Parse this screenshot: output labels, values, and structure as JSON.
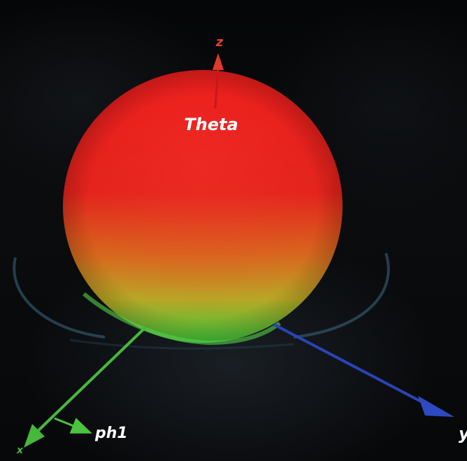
{
  "labels": {
    "z_axis": "z",
    "x_axis": "x",
    "y_axis": "y",
    "theta": "Theta",
    "phi": "ph1"
  },
  "colors": {
    "background": "#050607",
    "sphere_top": "#e3161a",
    "sphere_mid": "#d8781c",
    "sphere_bottom": "#3fc23a",
    "z_axis": "#e04030",
    "x_axis": "#46b83c",
    "y_axis": "#2a44b8",
    "ring": "#4a6f86",
    "label_text": "#ffffff"
  },
  "icons": {
    "z_arrow": "arrow-up-icon",
    "x_arrow": "arrow-down-left-icon",
    "y_arrow": "arrow-down-right-icon",
    "phi_arrow": "arrow-right-icon"
  }
}
